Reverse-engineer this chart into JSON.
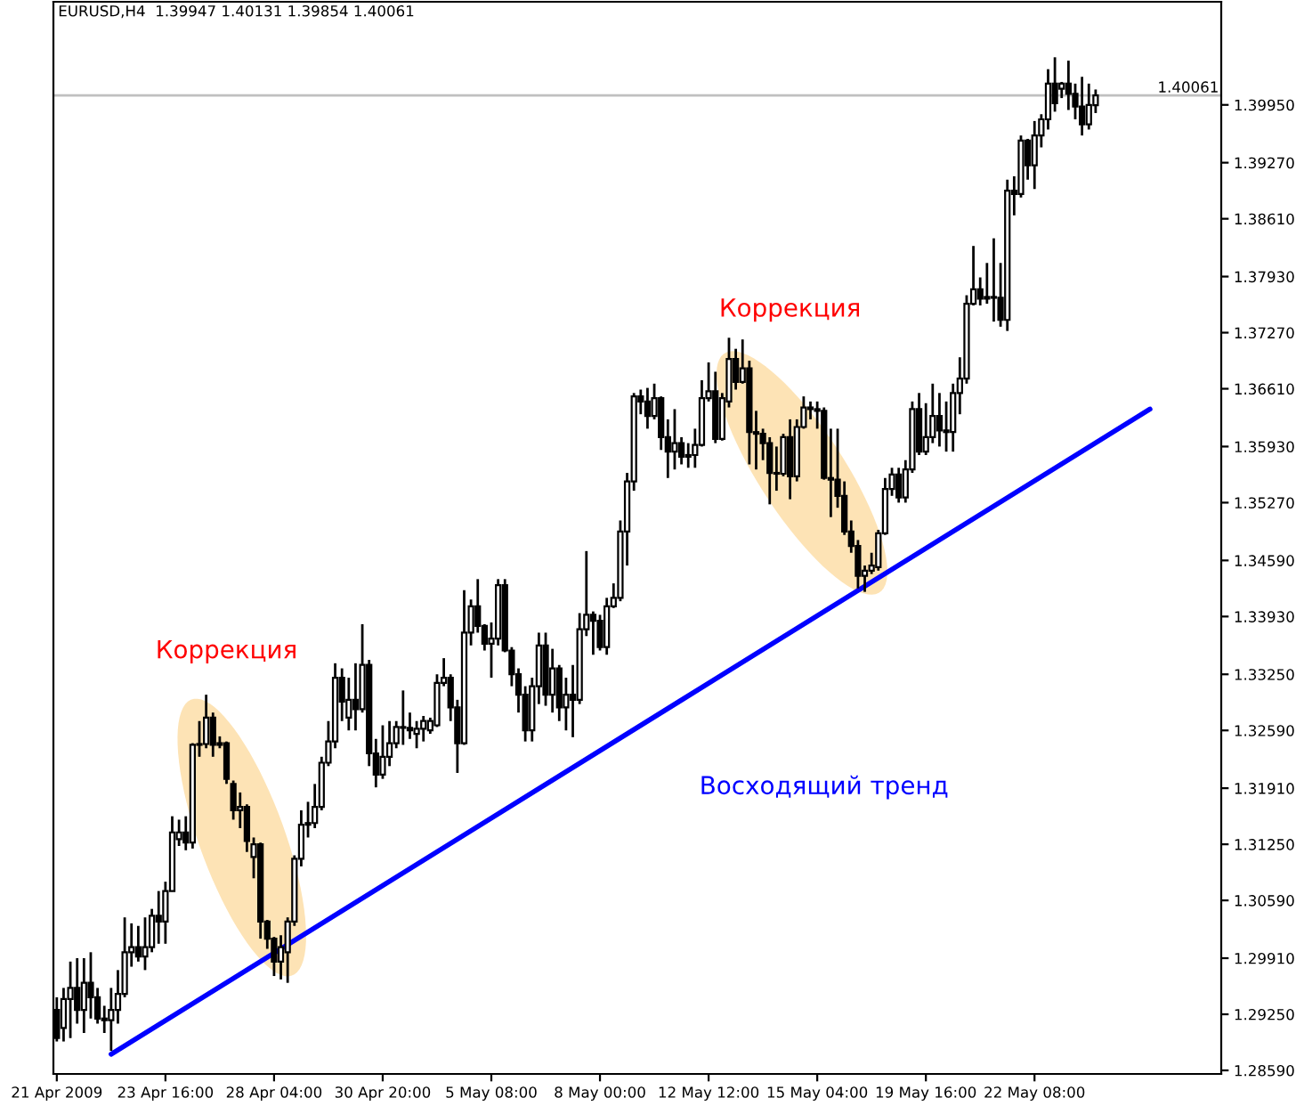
{
  "chart_data": {
    "type": "candlestick",
    "title": "EURUSD,H4  1.39947 1.40131 1.39854 1.40061",
    "categories": [
      "21 Apr 2009",
      null,
      null,
      null,
      null,
      null,
      null,
      null,
      null,
      null,
      null,
      null,
      null,
      null,
      null,
      null,
      "23 Apr 16:00",
      null,
      null,
      null,
      null,
      null,
      null,
      null,
      null,
      null,
      null,
      null,
      null,
      null,
      null,
      null,
      "28 Apr 04:00",
      null,
      null,
      null,
      null,
      null,
      null,
      null,
      null,
      null,
      null,
      null,
      null,
      null,
      null,
      null,
      "30 Apr 20:00",
      null,
      null,
      null,
      null,
      null,
      null,
      null,
      null,
      null,
      null,
      null,
      null,
      null,
      null,
      null,
      "5 May 08:00",
      null,
      null,
      null,
      null,
      null,
      null,
      null,
      null,
      null,
      null,
      null,
      null,
      null,
      null,
      null,
      "8 May 00:00",
      null,
      null,
      null,
      null,
      null,
      null,
      null,
      null,
      null,
      null,
      null,
      null,
      null,
      null,
      null,
      "12 May 12:00",
      null,
      null,
      null,
      null,
      null,
      null,
      null,
      null,
      null,
      null,
      null,
      null,
      null,
      null,
      null,
      "15 May 04:00",
      null,
      null,
      null,
      null,
      null,
      null,
      null,
      null,
      null,
      null,
      null,
      null,
      null,
      null,
      null,
      "19 May 16:00",
      null,
      null,
      null,
      null,
      null,
      null,
      null,
      null,
      null,
      null,
      null,
      null,
      null,
      null,
      null,
      "22 May 08:00",
      null,
      null,
      null,
      null,
      null,
      null,
      null,
      null,
      null,
      null,
      null,
      null,
      null,
      null,
      null,
      null,
      null,
      null,
      null,
      null,
      null,
      null,
      null,
      null,
      null,
      null,
      null
    ],
    "ohlc": [
      [
        1.293,
        1.2945,
        1.2893,
        1.2897
      ],
      [
        1.2909,
        1.2956,
        1.2893,
        1.2943
      ],
      [
        1.2943,
        1.2987,
        1.2897,
        1.2956
      ],
      [
        1.2956,
        1.2991,
        1.2914,
        1.293
      ],
      [
        1.293,
        1.2991,
        1.2903,
        1.2962
      ],
      [
        1.2962,
        1.2998,
        1.292,
        1.2945
      ],
      [
        1.2945,
        1.2956,
        1.2914,
        1.292
      ],
      [
        1.292,
        1.2935,
        1.2903,
        1.2918
      ],
      [
        1.2918,
        1.2956,
        1.2882,
        1.293
      ],
      [
        1.293,
        1.2977,
        1.2914,
        1.2949
      ],
      [
        1.2949,
        1.3039,
        1.2945,
        1.2998
      ],
      [
        1.2998,
        1.3032,
        1.2981,
        1.3004
      ],
      [
        1.3004,
        1.3029,
        1.2987,
        1.2993
      ],
      [
        1.2993,
        1.3039,
        1.2977,
        1.3004
      ],
      [
        1.3004,
        1.3049,
        1.2998,
        1.3041
      ],
      [
        1.3041,
        1.307,
        1.3008,
        1.3034
      ],
      [
        1.3034,
        1.3081,
        1.3008,
        1.307
      ],
      [
        1.307,
        1.3158,
        1.307,
        1.3139
      ],
      [
        1.3131,
        1.3154,
        1.3123,
        1.3139
      ],
      [
        1.3139,
        1.3158,
        1.3118,
        1.3127
      ],
      [
        1.3127,
        1.3244,
        1.312,
        1.3242
      ],
      [
        1.3242,
        1.327,
        1.3228,
        1.3243
      ],
      [
        1.3243,
        1.3301,
        1.3238,
        1.3274
      ],
      [
        1.3274,
        1.328,
        1.3228,
        1.3242
      ],
      [
        1.3242,
        1.3252,
        1.3238,
        1.3244
      ],
      [
        1.3244,
        1.3246,
        1.3196,
        1.3202
      ],
      [
        1.3196,
        1.32,
        1.3154,
        1.3165
      ],
      [
        1.3165,
        1.3186,
        1.3144,
        1.3169
      ],
      [
        1.3169,
        1.3172,
        1.3116,
        1.3129
      ],
      [
        1.311,
        1.3133,
        1.3085,
        1.3125
      ],
      [
        1.3125,
        1.3127,
        1.3014,
        1.3034
      ],
      [
        1.3034,
        1.3036,
        1.3002,
        1.3014
      ],
      [
        1.3014,
        1.3016,
        1.297,
        1.2987
      ],
      [
        1.2987,
        1.3018,
        1.2966,
        1.3004
      ],
      [
        1.2998,
        1.3039,
        1.2962,
        1.3034
      ],
      [
        1.3034,
        1.3112,
        1.3029,
        1.3108
      ],
      [
        1.3108,
        1.3165,
        1.3099,
        1.3148
      ],
      [
        1.3148,
        1.3175,
        1.3133,
        1.315
      ],
      [
        1.315,
        1.3196,
        1.3144,
        1.3169
      ],
      [
        1.3169,
        1.3228,
        1.3165,
        1.3221
      ],
      [
        1.3221,
        1.327,
        1.3217,
        1.3246
      ],
      [
        1.3246,
        1.3338,
        1.3238,
        1.3321
      ],
      [
        1.3321,
        1.3332,
        1.327,
        1.3293
      ],
      [
        1.3274,
        1.3321,
        1.3259,
        1.3295
      ],
      [
        1.3295,
        1.3338,
        1.3259,
        1.3284
      ],
      [
        1.3284,
        1.3384,
        1.328,
        1.3336
      ],
      [
        1.3336,
        1.3342,
        1.3217,
        1.3232
      ],
      [
        1.3232,
        1.3249,
        1.3192,
        1.3207
      ],
      [
        1.3207,
        1.3265,
        1.3202,
        1.3228
      ],
      [
        1.3228,
        1.327,
        1.3217,
        1.3244
      ],
      [
        1.3244,
        1.327,
        1.3238,
        1.3263
      ],
      [
        1.3263,
        1.3306,
        1.3242,
        1.3262
      ],
      [
        1.3262,
        1.328,
        1.3249,
        1.3259
      ],
      [
        1.3255,
        1.327,
        1.3238,
        1.3261
      ],
      [
        1.3261,
        1.3276,
        1.3246,
        1.327
      ],
      [
        1.3259,
        1.3274,
        1.3255,
        1.327
      ],
      [
        1.3265,
        1.3325,
        1.3263,
        1.3315
      ],
      [
        1.3315,
        1.3344,
        1.3311,
        1.3321
      ],
      [
        1.3321,
        1.3325,
        1.327,
        1.3286
      ],
      [
        1.3286,
        1.3295,
        1.3209,
        1.3244
      ],
      [
        1.3244,
        1.3424,
        1.3242,
        1.3374
      ],
      [
        1.3374,
        1.3413,
        1.3359,
        1.3405
      ],
      [
        1.3405,
        1.3437,
        1.3374,
        1.3382
      ],
      [
        1.3382,
        1.3384,
        1.3353,
        1.3361
      ],
      [
        1.3361,
        1.3386,
        1.3321,
        1.3367
      ],
      [
        1.3367,
        1.3437,
        1.3359,
        1.343
      ],
      [
        1.343,
        1.3437,
        1.3351,
        1.3353
      ],
      [
        1.3353,
        1.3357,
        1.3311,
        1.3325
      ],
      [
        1.3325,
        1.3332,
        1.328,
        1.3301
      ],
      [
        1.3301,
        1.3311,
        1.3246,
        1.3259
      ],
      [
        1.3259,
        1.3321,
        1.3246,
        1.3311
      ],
      [
        1.3311,
        1.3374,
        1.329,
        1.3359
      ],
      [
        1.3359,
        1.3374,
        1.3288,
        1.3301
      ],
      [
        1.3301,
        1.3355,
        1.328,
        1.3332
      ],
      [
        1.3332,
        1.3336,
        1.327,
        1.3286
      ],
      [
        1.3286,
        1.3321,
        1.3259,
        1.3301
      ],
      [
        1.3301,
        1.3336,
        1.3251,
        1.3295
      ],
      [
        1.3295,
        1.3397,
        1.329,
        1.3378
      ],
      [
        1.3378,
        1.347,
        1.337,
        1.3395
      ],
      [
        1.3395,
        1.3399,
        1.3348,
        1.3388
      ],
      [
        1.3388,
        1.3395,
        1.3353,
        1.3357
      ],
      [
        1.3357,
        1.3415,
        1.3348,
        1.3405
      ],
      [
        1.3405,
        1.3432,
        1.3403,
        1.3415
      ],
      [
        1.3415,
        1.3506,
        1.3411,
        1.3493
      ],
      [
        1.3493,
        1.3562,
        1.3453,
        1.3552
      ],
      [
        1.3552,
        1.3656,
        1.3541,
        1.3652
      ],
      [
        1.3652,
        1.366,
        1.3631,
        1.3646
      ],
      [
        1.3646,
        1.3662,
        1.3614,
        1.3629
      ],
      [
        1.3629,
        1.3667,
        1.3625,
        1.365
      ],
      [
        1.365,
        1.3652,
        1.3589,
        1.3604
      ],
      [
        1.3604,
        1.3625,
        1.3556,
        1.3587
      ],
      [
        1.3587,
        1.3637,
        1.3566,
        1.3597
      ],
      [
        1.3597,
        1.3604,
        1.3572,
        1.3581
      ],
      [
        1.3581,
        1.3597,
        1.3568,
        1.3583
      ],
      [
        1.3583,
        1.3614,
        1.3568,
        1.3595
      ],
      [
        1.3595,
        1.3671,
        1.3593,
        1.365
      ],
      [
        1.365,
        1.3692,
        1.3646,
        1.3658
      ],
      [
        1.3658,
        1.3681,
        1.3597,
        1.3602
      ],
      [
        1.3602,
        1.3656,
        1.36,
        1.365
      ],
      [
        1.3646,
        1.3721,
        1.3639,
        1.3696
      ],
      [
        1.3696,
        1.3708,
        1.366,
        1.3669
      ],
      [
        1.3669,
        1.3719,
        1.3667,
        1.3685
      ],
      [
        1.3685,
        1.3694,
        1.3572,
        1.361
      ],
      [
        1.361,
        1.3635,
        1.3566,
        1.3608
      ],
      [
        1.3608,
        1.3614,
        1.3577,
        1.3597
      ],
      [
        1.3597,
        1.3604,
        1.3525,
        1.3562
      ],
      [
        1.3562,
        1.3593,
        1.3541,
        1.3561
      ],
      [
        1.3561,
        1.3608,
        1.3558,
        1.3604
      ],
      [
        1.3604,
        1.3625,
        1.3531,
        1.3558
      ],
      [
        1.3558,
        1.3625,
        1.3552,
        1.3616
      ],
      [
        1.3616,
        1.3652,
        1.3614,
        1.3639
      ],
      [
        1.3639,
        1.3646,
        1.3625,
        1.3637
      ],
      [
        1.3637,
        1.3646,
        1.3614,
        1.3635
      ],
      [
        1.3635,
        1.3639,
        1.3554,
        1.3556
      ],
      [
        1.3556,
        1.3614,
        1.351,
        1.3554
      ],
      [
        1.3554,
        1.3614,
        1.3521,
        1.3535
      ],
      [
        1.3535,
        1.3552,
        1.3489,
        1.3493
      ],
      [
        1.3493,
        1.3506,
        1.3468,
        1.3476
      ],
      [
        1.3476,
        1.3483,
        1.3426,
        1.3441
      ],
      [
        1.3441,
        1.3453,
        1.3422,
        1.3447
      ],
      [
        1.3447,
        1.3468,
        1.3443,
        1.3453
      ],
      [
        1.3451,
        1.3495,
        1.3447,
        1.3491
      ],
      [
        1.3491,
        1.3556,
        1.3489,
        1.3543
      ],
      [
        1.3543,
        1.3568,
        1.3535,
        1.356
      ],
      [
        1.356,
        1.3568,
        1.3527,
        1.3533
      ],
      [
        1.3533,
        1.3577,
        1.3527,
        1.3566
      ],
      [
        1.3566,
        1.3646,
        1.3562,
        1.3637
      ],
      [
        1.3637,
        1.3656,
        1.3583,
        1.3587
      ],
      [
        1.3587,
        1.3644,
        1.3583,
        1.3604
      ],
      [
        1.3604,
        1.3667,
        1.3597,
        1.3629
      ],
      [
        1.3629,
        1.3656,
        1.3593,
        1.3612
      ],
      [
        1.3612,
        1.3646,
        1.3587,
        1.361
      ],
      [
        1.361,
        1.3667,
        1.3587,
        1.3656
      ],
      [
        1.3656,
        1.3698,
        1.3631,
        1.3673
      ],
      [
        1.3673,
        1.3771,
        1.3667,
        1.3761
      ],
      [
        1.3761,
        1.3829,
        1.3759,
        1.3778
      ],
      [
        1.3778,
        1.3792,
        1.3759,
        1.3767
      ],
      [
        1.3767,
        1.3809,
        1.3761,
        1.3769
      ],
      [
        1.3769,
        1.3838,
        1.374,
        1.3768
      ],
      [
        1.3768,
        1.3809,
        1.3734,
        1.3742
      ],
      [
        1.3742,
        1.3907,
        1.3729,
        1.3894
      ],
      [
        1.3894,
        1.3911,
        1.3865,
        1.389
      ],
      [
        1.389,
        1.3959,
        1.3886,
        1.3953
      ],
      [
        1.3953,
        1.3955,
        1.3907,
        1.3924
      ],
      [
        1.3924,
        1.3976,
        1.3896,
        1.3959
      ],
      [
        1.3959,
        1.3984,
        1.3945,
        1.3978
      ],
      [
        1.3978,
        1.4037,
        1.3966,
        1.402
      ],
      [
        1.402,
        1.4051,
        1.3987,
        1.3997
      ],
      [
        1.4014,
        1.4022,
        1.4003,
        1.402
      ],
      [
        1.402,
        1.4047,
        1.3989,
        1.4008
      ],
      [
        1.4008,
        1.402,
        1.3978,
        1.3993
      ],
      [
        1.3993,
        1.4028,
        1.3959,
        1.3972
      ],
      [
        1.3972,
        1.402,
        1.3966,
        1.3995
      ],
      [
        1.39947,
        1.40131,
        1.39854,
        1.40061
      ],
      null,
      null,
      null,
      null,
      null,
      null,
      null,
      null,
      null,
      null,
      null,
      null,
      null,
      null,
      null,
      null,
      null,
      null
    ],
    "series": [
      {
        "type": "line",
        "color": "#0000ff",
        "values": [
          null,
          null,
          null,
          null,
          null,
          null,
          null,
          null,
          1.2878,
          null,
          null,
          null,
          null,
          null,
          null,
          null,
          null,
          null,
          null,
          null,
          null,
          null,
          null,
          null,
          null,
          null,
          null,
          null,
          null,
          null,
          null,
          null,
          null,
          null,
          null,
          null,
          null,
          null,
          null,
          null,
          null,
          null,
          null,
          null,
          null,
          null,
          null,
          null,
          null,
          null,
          null,
          null,
          null,
          null,
          null,
          null,
          null,
          null,
          null,
          null,
          null,
          null,
          null,
          null,
          null,
          null,
          null,
          null,
          null,
          null,
          null,
          null,
          null,
          null,
          null,
          null,
          null,
          null,
          null,
          null,
          null,
          null,
          null,
          null,
          null,
          null,
          null,
          null,
          null,
          null,
          null,
          null,
          null,
          null,
          null,
          null,
          null,
          null,
          null,
          null,
          null,
          null,
          null,
          null,
          null,
          null,
          null,
          null,
          null,
          null,
          null,
          null,
          null,
          null,
          null,
          null,
          null,
          null,
          null,
          null,
          null,
          null,
          null,
          null,
          null,
          null,
          null,
          null,
          null,
          null,
          null,
          null,
          null,
          null,
          null,
          null,
          null,
          null,
          null,
          null,
          null,
          null,
          null,
          null,
          null,
          null,
          null,
          null,
          null,
          null,
          null,
          null,
          null,
          null,
          null,
          null,
          null,
          null,
          null,
          null,
          null,
          1.3637,
          null,
          null,
          null,
          null,
          null,
          null,
          null,
          null,
          null,
          null
        ]
      }
    ],
    "ylim": [
      1.28548,
      1.41163
    ],
    "yticks": [
      {
        "value": 1.3995,
        "label": "1.39950"
      },
      {
        "value": 1.3927,
        "label": "1.39270"
      },
      {
        "value": 1.3861,
        "label": "1.38610"
      },
      {
        "value": 1.3793,
        "label": "1.37930"
      },
      {
        "value": 1.3727,
        "label": "1.37270"
      },
      {
        "value": 1.3661,
        "label": "1.36610"
      },
      {
        "value": 1.3593,
        "label": "1.35930"
      },
      {
        "value": 1.3527,
        "label": "1.35270"
      },
      {
        "value": 1.3459,
        "label": "1.34590"
      },
      {
        "value": 1.3393,
        "label": "1.33930"
      },
      {
        "value": 1.3325,
        "label": "1.33250"
      },
      {
        "value": 1.3259,
        "label": "1.32590"
      },
      {
        "value": 1.3191,
        "label": "1.31910"
      },
      {
        "value": 1.3125,
        "label": "1.31250"
      },
      {
        "value": 1.3059,
        "label": "1.30590"
      },
      {
        "value": 1.2991,
        "label": "1.29910"
      },
      {
        "value": 1.2925,
        "label": "1.29250"
      },
      {
        "value": 1.2859,
        "label": "1.28590"
      }
    ],
    "ref_lines": [
      {
        "axis": "y",
        "value": 1.40061,
        "label": "1.40061",
        "color": "#c0c0c0"
      }
    ],
    "annotations": [
      "Коррекция",
      "Коррекция",
      "Восходящий тренд"
    ]
  }
}
